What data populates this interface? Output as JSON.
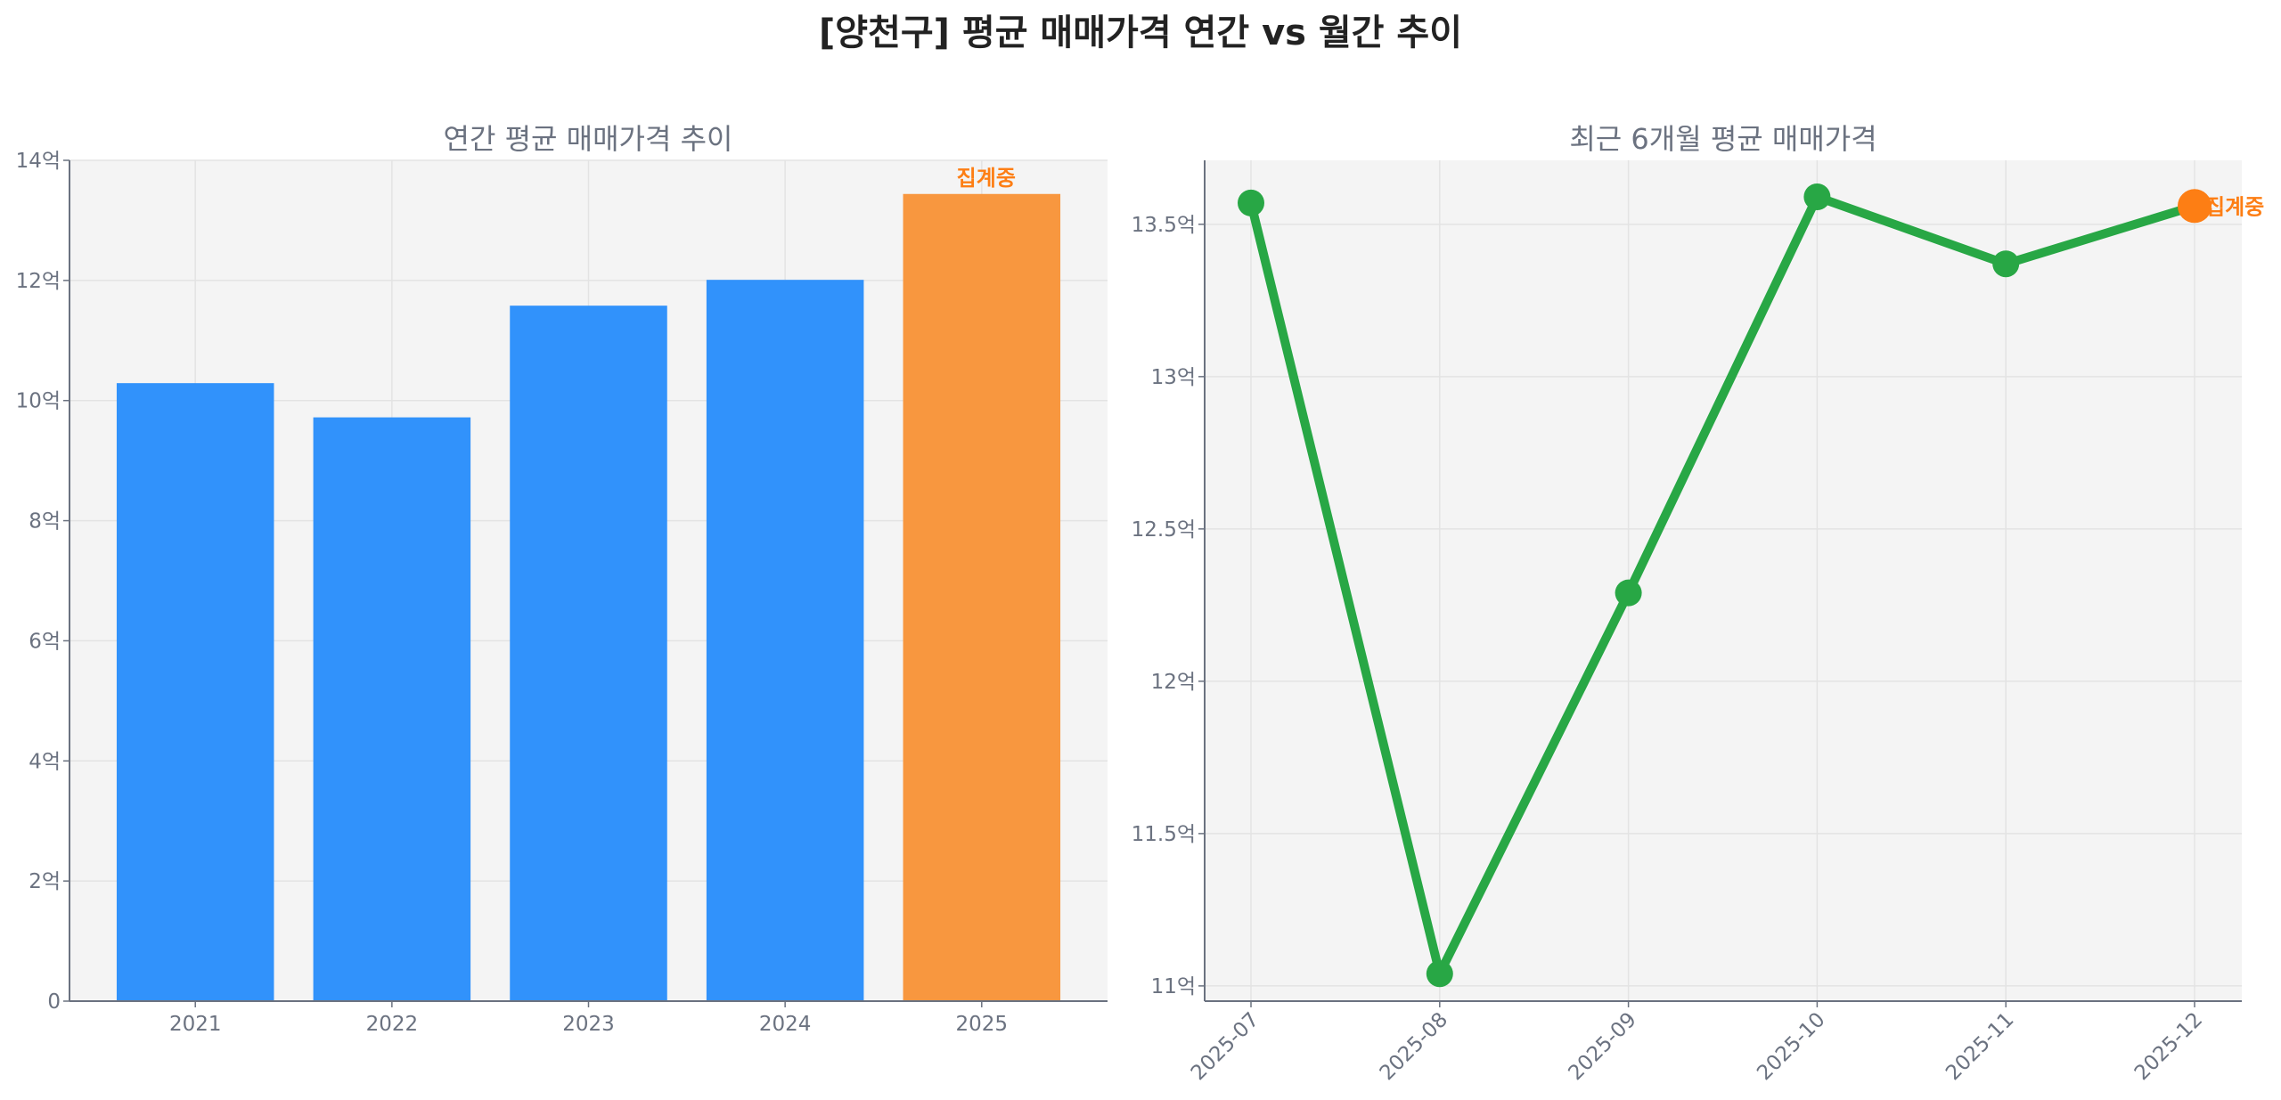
{
  "title": "[양천구] 평균 매매가격 연간 vs 월간 추이",
  "colors": {
    "bar": "#3192fb",
    "bar_current": "#f8973f",
    "line": "#28a745",
    "point_current": "#fd7e14",
    "annotation": "#fd7e14"
  },
  "chart_data": [
    {
      "type": "bar",
      "title": "연간 평균 매매가격 추이",
      "categories": [
        "2021",
        "2022",
        "2023",
        "2024",
        "2025"
      ],
      "values": [
        10.29,
        9.72,
        11.58,
        12.01,
        13.44
      ],
      "unit": "억",
      "ylim": [
        0,
        14
      ],
      "yticks": [
        0,
        2,
        4,
        6,
        8,
        10,
        12,
        14
      ],
      "ytick_labels": [
        "0",
        "2억",
        "4억",
        "6억",
        "8억",
        "10억",
        "12억",
        "14억"
      ],
      "grid": true,
      "annotation": {
        "category": "2025",
        "text": "집계중"
      }
    },
    {
      "type": "line",
      "title": "최근 6개월 평균 매매가격",
      "categories": [
        "2025-07",
        "2025-08",
        "2025-09",
        "2025-10",
        "2025-11",
        "2025-12"
      ],
      "values": [
        13.57,
        11.04,
        12.29,
        13.59,
        13.37,
        13.56
      ],
      "unit": "억",
      "ylim": [
        10.95,
        13.71
      ],
      "yticks": [
        11,
        11.5,
        12,
        12.5,
        13,
        13.5
      ],
      "ytick_labels": [
        "11억",
        "11.5억",
        "12억",
        "12.5억",
        "13억",
        "13.5억"
      ],
      "grid": true,
      "annotation": {
        "category": "2025-12",
        "text": "집계중"
      }
    }
  ]
}
